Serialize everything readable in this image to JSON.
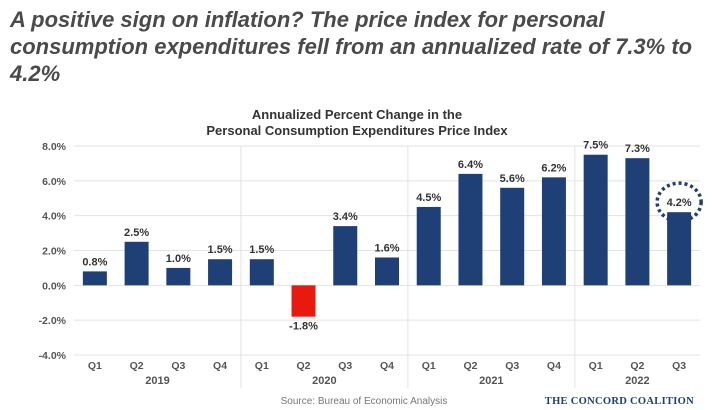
{
  "headline": "A positive sign on inflation? The price index for personal consumption expenditures fell from an annualized rate of 7.3% to 4.2%",
  "source": "Source: Bureau of Economic Analysis",
  "brand": "The Concord Coalition",
  "colors": {
    "bar": "#1f3f77",
    "negative_bar": "#e8190e",
    "highlight_ring": "#1f3f77",
    "grid": "#e3e3e3"
  },
  "chart_data": {
    "type": "bar",
    "title": [
      "Annualized Percent Change in the",
      "Personal Consumption Expenditures Price Index"
    ],
    "xlabel": "",
    "ylabel": "",
    "ylim": [
      -4.0,
      8.0
    ],
    "y_ticks": [
      8.0,
      6.0,
      4.0,
      2.0,
      0.0,
      -2.0,
      -4.0
    ],
    "y_tick_labels": [
      "8.0%",
      "6.0%",
      "4.0%",
      "2.0%",
      "0.0%",
      "-2.0%",
      "-4.0%"
    ],
    "categories": [
      "Q1",
      "Q2",
      "Q3",
      "Q4",
      "Q1",
      "Q2",
      "Q3",
      "Q4",
      "Q1",
      "Q2",
      "Q3",
      "Q4",
      "Q1",
      "Q2",
      "Q3"
    ],
    "years": [
      {
        "label": "2019",
        "quarters": 4
      },
      {
        "label": "2020",
        "quarters": 4
      },
      {
        "label": "2021",
        "quarters": 4
      },
      {
        "label": "2022",
        "quarters": 3
      }
    ],
    "values": [
      0.8,
      2.5,
      1.0,
      1.5,
      1.5,
      -1.8,
      3.4,
      1.6,
      4.5,
      6.4,
      5.6,
      6.2,
      7.5,
      7.3,
      4.2
    ],
    "data_labels": [
      "0.8%",
      "2.5%",
      "1.0%",
      "1.5%",
      "1.5%",
      "-1.8%",
      "3.4%",
      "1.6%",
      "4.5%",
      "6.4%",
      "5.6%",
      "6.2%",
      "7.5%",
      "7.3%",
      "4.2%"
    ],
    "highlighted_index": 14,
    "grid": true,
    "legend": "none"
  }
}
